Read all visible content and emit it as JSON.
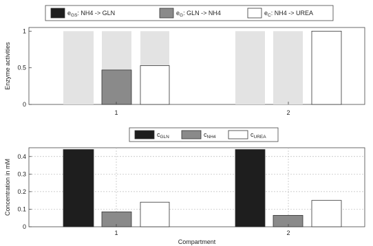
{
  "chart_data": [
    {
      "type": "bar",
      "ylabel": "Enzyme activities",
      "xlabel": "",
      "ylim": [
        0,
        1.05
      ],
      "yticks": [
        "0",
        "0.5",
        "1"
      ],
      "categories": [
        "1",
        "2"
      ],
      "background_bars": {
        "color": "#e3e3e3",
        "value": 1
      },
      "legend": {
        "placement": "top",
        "entries": [
          {
            "base": "e",
            "sub": "GS",
            "text": ": NH4 -> GLN"
          },
          {
            "base": "e",
            "sub": "G",
            "text": ": GLN -> NH4"
          },
          {
            "base": "e",
            "sub": "C",
            "text": ": NH4 -> UREA"
          }
        ]
      },
      "series": [
        {
          "key": "eGS",
          "color": "#1e1e1e",
          "values": [
            0,
            0
          ]
        },
        {
          "key": "eG",
          "color": "#8a8a8a",
          "values": [
            0.47,
            0
          ]
        },
        {
          "key": "eC",
          "color": "#ffffff",
          "values": [
            0.53,
            1.0
          ]
        }
      ],
      "grid": false
    },
    {
      "type": "bar",
      "ylabel": "Concentration in mM",
      "xlabel": "Compartment",
      "ylim": [
        0,
        0.45
      ],
      "yticks": [
        "0",
        "0.1",
        "0.2",
        "0.3",
        "0.4"
      ],
      "categories": [
        "1",
        "2"
      ],
      "legend": {
        "placement": "top",
        "entries": [
          {
            "base": "c",
            "sub": "GLN",
            "text": ""
          },
          {
            "base": "c",
            "sub": "NH4",
            "text": ""
          },
          {
            "base": "c",
            "sub": "UREA",
            "text": ""
          }
        ]
      },
      "series": [
        {
          "key": "cGLN",
          "color": "#1e1e1e",
          "values": [
            0.44,
            0.44
          ]
        },
        {
          "key": "cNH4",
          "color": "#8a8a8a",
          "values": [
            0.085,
            0.065
          ]
        },
        {
          "key": "cUREA",
          "color": "#ffffff",
          "values": [
            0.14,
            0.15
          ]
        }
      ],
      "grid": true
    }
  ]
}
